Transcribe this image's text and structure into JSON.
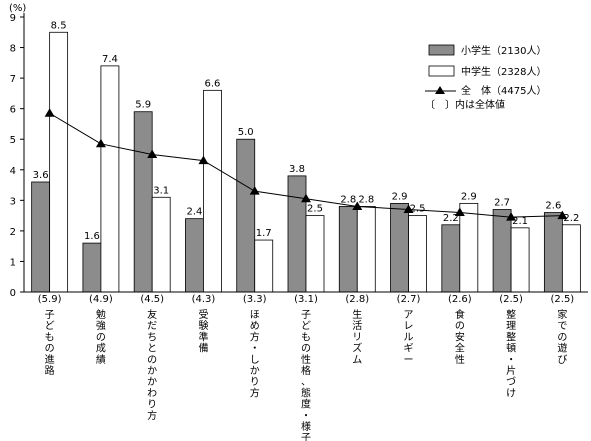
{
  "chart_data": {
    "type": "bar",
    "unit_label": "(%)",
    "ylim": [
      0,
      9
    ],
    "yticks": [
      0,
      1,
      2,
      3,
      4,
      5,
      6,
      7,
      8,
      9
    ],
    "categories": [
      "子どもの進路",
      "勉強の成績",
      "友だちとのかかわり方",
      "受験準備",
      "ほめ方・しかり方",
      "子どもの性格、態度・様子",
      "生活リズム",
      "アレルギー",
      "食の安全性",
      "整理整頓・片づけ",
      "家での遊び"
    ],
    "totals_display": [
      "(5.9)",
      "(4.9)",
      "(4.5)",
      "(4.3)",
      "(3.3)",
      "(3.1)",
      "(2.8)",
      "(2.7)",
      "(2.6)",
      "(2.5)",
      "(2.5)"
    ],
    "series": [
      {
        "name": "小学生（2130人）",
        "kind": "bar",
        "color": "#8c8c8c",
        "values": [
          3.6,
          1.6,
          5.9,
          2.4,
          5.0,
          3.8,
          2.8,
          2.9,
          2.2,
          2.7,
          2.6
        ],
        "labels": [
          "3.6",
          "1.6",
          "5.9",
          "2.4",
          "5.0",
          "3.8",
          "2.8",
          "2.9",
          "2.2",
          "2.7",
          "2.6"
        ]
      },
      {
        "name": "中学生（2328人）",
        "kind": "bar",
        "color": "#ffffff",
        "values": [
          8.5,
          7.4,
          3.1,
          6.6,
          1.7,
          2.5,
          2.8,
          2.5,
          2.9,
          2.1,
          2.2
        ],
        "labels": [
          "8.5",
          "7.4",
          "3.1",
          "6.6",
          "1.7",
          "2.5",
          "2.8",
          "2.5",
          "2.9",
          "2.1",
          "2.2"
        ]
      },
      {
        "name": "全　体（4475人）",
        "kind": "line",
        "color": "#000000",
        "values": [
          5.85,
          4.85,
          4.5,
          4.3,
          3.3,
          3.05,
          2.8,
          2.7,
          2.6,
          2.45,
          2.5
        ]
      }
    ],
    "legend_note": "〔　〕内は全体値",
    "legend_position": "top-right",
    "grid": false
  }
}
